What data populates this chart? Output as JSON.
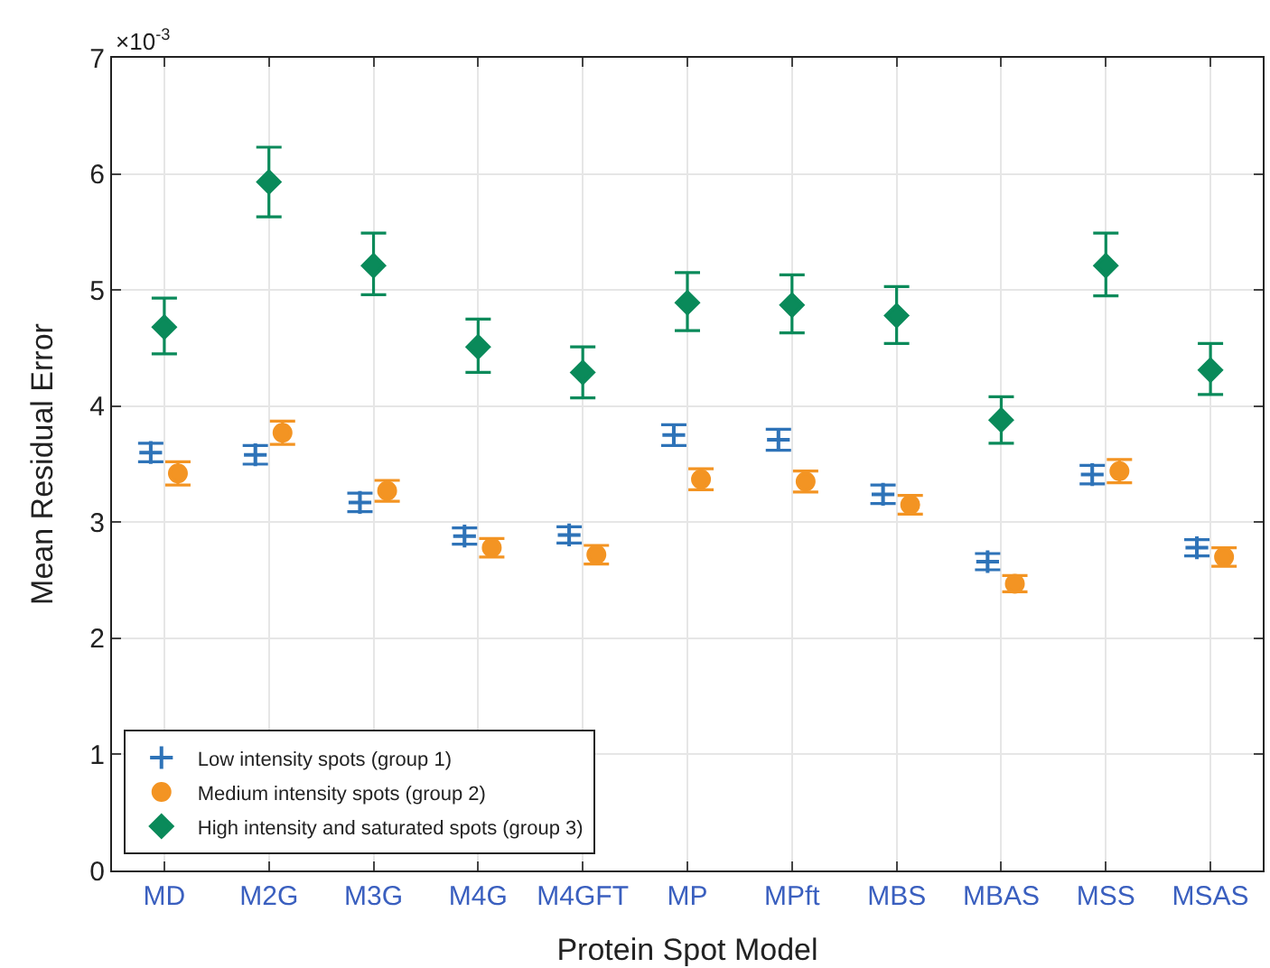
{
  "chart_data": {
    "type": "scatter",
    "xlabel": "Protein Spot Model",
    "ylabel": "Mean Residual Error",
    "annotations": [
      "×10$^{-3}$"
    ],
    "categories": [
      "MD",
      "M2G",
      "M3G",
      "M4G",
      "M4GFT",
      "MP",
      "MPft",
      "MBS",
      "MBAS",
      "MSS",
      "MSAS"
    ],
    "series": [
      {
        "name": "Low intensity spots (group 1)",
        "color": "#2e73b8",
        "marker": "cross",
        "values": [
          3.6,
          3.58,
          3.17,
          2.88,
          2.89,
          3.75,
          3.71,
          3.24,
          2.66,
          3.41,
          2.78
        ],
        "errors": [
          0.08,
          0.08,
          0.08,
          0.07,
          0.07,
          0.09,
          0.09,
          0.08,
          0.07,
          0.08,
          0.07
        ]
      },
      {
        "name": "Medium intensity spots (group 2)",
        "color": "#f39423",
        "values": [
          3.42,
          3.77,
          3.27,
          2.78,
          2.72,
          3.37,
          3.35,
          3.15,
          2.47,
          3.44,
          2.7
        ],
        "errors": [
          0.1,
          0.1,
          0.09,
          0.08,
          0.08,
          0.09,
          0.09,
          0.08,
          0.07,
          0.1,
          0.08
        ]
      },
      {
        "name": "High intensity and saturated spots (group 3)",
        "color": "#0a8a5a",
        "marker": "diamond",
        "values": [
          4.68,
          5.93,
          5.21,
          4.51,
          4.29,
          4.89,
          4.87,
          4.78,
          3.88,
          5.21,
          4.31
        ],
        "errors": [
          [
            4.45,
            4.93
          ],
          [
            5.63,
            6.23
          ],
          [
            4.96,
            5.49
          ],
          [
            4.29,
            4.75
          ],
          [
            4.07,
            4.51
          ],
          [
            4.65,
            5.15
          ],
          [
            4.63,
            5.13
          ],
          [
            4.54,
            5.03
          ],
          [
            3.68,
            4.08
          ],
          [
            4.95,
            5.49
          ],
          [
            4.1,
            4.54
          ]
        ]
      }
    ],
    "ylim": [
      0,
      7
    ],
    "yticks": [
      0,
      1,
      2,
      3,
      4,
      5,
      6,
      7
    ],
    "grid": true,
    "legend": "bottom left"
  }
}
